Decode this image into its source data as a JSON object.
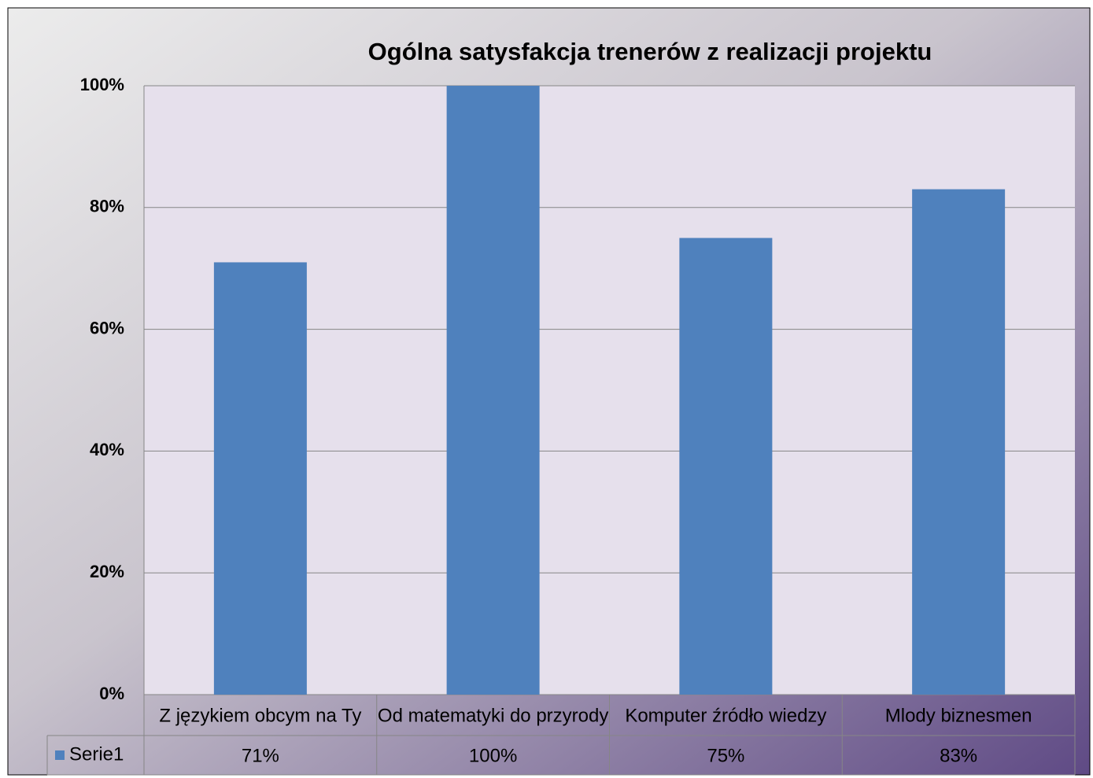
{
  "chart_data": {
    "type": "bar",
    "title": "Ogólna satysfakcja trenerów z realizacji projektu",
    "categories": [
      "Z językiem obcym na Ty",
      "Od matematyki do przyrody",
      "Komputer źródło wiedzy",
      "Mlody biznesmen"
    ],
    "series": [
      {
        "name": "Serie1",
        "color": "#4f81bd",
        "values": [
          71,
          100,
          75,
          83
        ],
        "value_labels": [
          "71%",
          "100%",
          "75%",
          "83%"
        ]
      }
    ],
    "ylim": [
      0,
      100
    ],
    "yticks": [
      {
        "value": 0,
        "label": "0%"
      },
      {
        "value": 20,
        "label": "20%"
      },
      {
        "value": 40,
        "label": "40%"
      },
      {
        "value": 60,
        "label": "60%"
      },
      {
        "value": 80,
        "label": "80%"
      },
      {
        "value": 100,
        "label": "100%"
      }
    ],
    "grid": true
  }
}
